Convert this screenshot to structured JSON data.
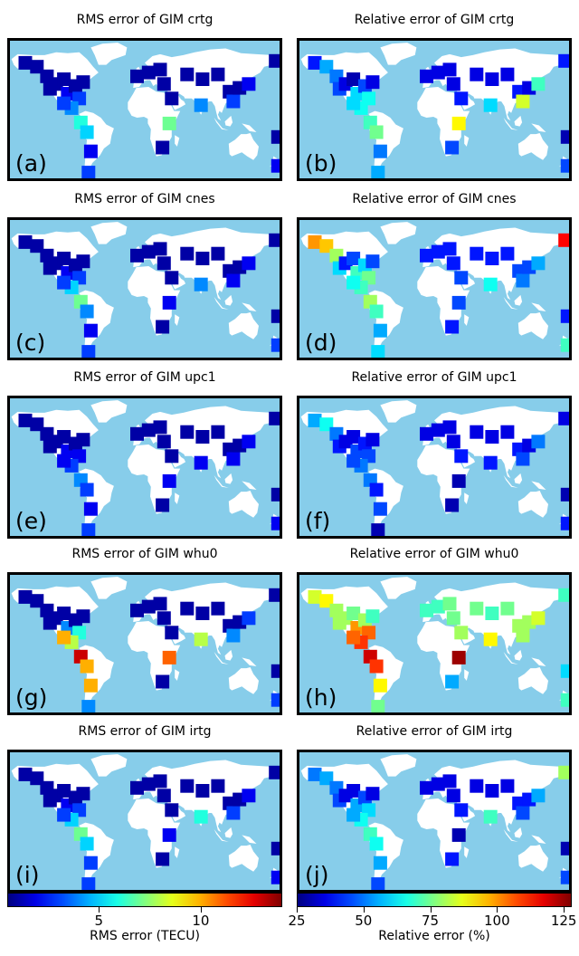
{
  "panels": [
    {
      "title": "RMS error of GIM crtg",
      "label": "(a)",
      "colormap": "rms"
    },
    {
      "title": "Relative error of GIM crtg",
      "label": "(b)",
      "colormap": "rel"
    },
    {
      "title": "RMS error of GIM cnes",
      "label": "(c)",
      "colormap": "rms"
    },
    {
      "title": "Relative error of GIM cnes",
      "label": "(d)",
      "colormap": "rel"
    },
    {
      "title": "RMS error of GIM upc1",
      "label": "(e)",
      "colormap": "rms"
    },
    {
      "title": "Relative error of GIM upc1",
      "label": "(f)",
      "colormap": "rel"
    },
    {
      "title": "RMS error of GIM whu0",
      "label": "(g)",
      "colormap": "rms"
    },
    {
      "title": "Relative error of GIM whu0",
      "label": "(h)",
      "colormap": "rel"
    },
    {
      "title": "RMS error of GIM irtg",
      "label": "(i)",
      "colormap": "rms"
    },
    {
      "title": "Relative error of GIM irtg",
      "label": "(j)",
      "colormap": "rel"
    }
  ],
  "colorbars": [
    {
      "label": "RMS error (TECU)",
      "ticks": [
        "5",
        "10"
      ],
      "tick_values": [
        5,
        10
      ],
      "range": [
        0.5,
        14
      ]
    },
    {
      "label": "Relative error (%)",
      "ticks": [
        "25",
        "50",
        "75",
        "100",
        "125"
      ],
      "tick_values": [
        25,
        50,
        75,
        100,
        125
      ],
      "range": [
        25,
        128
      ]
    }
  ],
  "colors": {
    "ocean": "#87cdea",
    "land": "#ffffff",
    "frame": "#000000"
  },
  "chart_data": {
    "type": "heatmap",
    "description_of_values": "approximate per-station error levels read from the jet colormap, station locations in degrees (lon, lat)",
    "stations": [
      {
        "lon": -150,
        "lat": 62
      },
      {
        "lon": -135,
        "lat": 58
      },
      {
        "lon": -122,
        "lat": 48
      },
      {
        "lon": -118,
        "lat": 35
      },
      {
        "lon": -110,
        "lat": 40
      },
      {
        "lon": -100,
        "lat": 45
      },
      {
        "lon": -95,
        "lat": 30
      },
      {
        "lon": -85,
        "lat": 38
      },
      {
        "lon": -75,
        "lat": 42
      },
      {
        "lon": -80,
        "lat": 25
      },
      {
        "lon": -90,
        "lat": 15
      },
      {
        "lon": -100,
        "lat": 20
      },
      {
        "lon": -78,
        "lat": 0
      },
      {
        "lon": -70,
        "lat": -10
      },
      {
        "lon": -65,
        "lat": -30
      },
      {
        "lon": -68,
        "lat": -52
      },
      {
        "lon": -5,
        "lat": 48
      },
      {
        "lon": 10,
        "lat": 52
      },
      {
        "lon": 25,
        "lat": 55
      },
      {
        "lon": 30,
        "lat": 40
      },
      {
        "lon": 40,
        "lat": 25
      },
      {
        "lon": 37,
        "lat": -1
      },
      {
        "lon": 28,
        "lat": -26
      },
      {
        "lon": 60,
        "lat": 50
      },
      {
        "lon": 80,
        "lat": 45
      },
      {
        "lon": 100,
        "lat": 50
      },
      {
        "lon": 78,
        "lat": 18
      },
      {
        "lon": 115,
        "lat": 32
      },
      {
        "lon": 120,
        "lat": 22
      },
      {
        "lon": 128,
        "lat": 36
      },
      {
        "lon": 140,
        "lat": 40
      },
      {
        "lon": 175,
        "lat": 64
      },
      {
        "lon": 178,
        "lat": -15
      },
      {
        "lon": 178,
        "lat": -45
      }
    ],
    "series": [
      {
        "panel": "(a)",
        "values": [
          1,
          1,
          1,
          1,
          1,
          1,
          2,
          1,
          1,
          3,
          4,
          3,
          6,
          5,
          2,
          3,
          1,
          1,
          1,
          1,
          1,
          7,
          1,
          1,
          1,
          1,
          4,
          1,
          3,
          1,
          2,
          1,
          1,
          2
        ]
      },
      {
        "panel": "(b)",
        "values": [
          40,
          55,
          50,
          45,
          35,
          30,
          60,
          45,
          35,
          65,
          65,
          60,
          70,
          75,
          50,
          55,
          35,
          35,
          35,
          35,
          40,
          90,
          45,
          35,
          35,
          35,
          60,
          40,
          85,
          35,
          70,
          40,
          30,
          45
        ]
      },
      {
        "panel": "(c)",
        "values": [
          1,
          1,
          1,
          1,
          1,
          1,
          2,
          1,
          1,
          3,
          5,
          3,
          7,
          4,
          2,
          3,
          1,
          1,
          1,
          1,
          1,
          2,
          1,
          1,
          1,
          1,
          4,
          1,
          2,
          1,
          2,
          1,
          1,
          3
        ]
      },
      {
        "panel": "(d)",
        "values": [
          100,
          95,
          80,
          60,
          40,
          45,
          70,
          60,
          45,
          75,
          70,
          65,
          80,
          70,
          55,
          60,
          40,
          40,
          40,
          40,
          45,
          45,
          40,
          40,
          40,
          40,
          65,
          45,
          50,
          45,
          55,
          115,
          40,
          70
        ]
      },
      {
        "panel": "(e)",
        "values": [
          1,
          1,
          1,
          1,
          1,
          1,
          2,
          1,
          1,
          2,
          3,
          2,
          4,
          3,
          2,
          3,
          1,
          1,
          1,
          1,
          1,
          2,
          1,
          1,
          1,
          1,
          2,
          1,
          2,
          1,
          2,
          1,
          1,
          2
        ]
      },
      {
        "panel": "(f)",
        "values": [
          55,
          65,
          50,
          40,
          35,
          35,
          45,
          40,
          35,
          45,
          50,
          45,
          50,
          40,
          45,
          30,
          35,
          35,
          35,
          35,
          40,
          30,
          30,
          35,
          35,
          35,
          40,
          40,
          45,
          35,
          50,
          35,
          30,
          40
        ]
      },
      {
        "panel": "(g)",
        "values": [
          1,
          1,
          1,
          1,
          1,
          1,
          4,
          1,
          1,
          6,
          8,
          10,
          13,
          10,
          10,
          4,
          1,
          1,
          1,
          1,
          1,
          11,
          1,
          1,
          1,
          1,
          8,
          1,
          4,
          1,
          3,
          1,
          1,
          3
        ]
      },
      {
        "panel": "(h)",
        "values": [
          85,
          90,
          80,
          80,
          80,
          75,
          100,
          80,
          70,
          105,
          110,
          105,
          120,
          110,
          90,
          75,
          70,
          70,
          75,
          75,
          80,
          125,
          55,
          75,
          70,
          75,
          90,
          80,
          80,
          80,
          85,
          70,
          60,
          70
        ]
      },
      {
        "panel": "(i)",
        "values": [
          1,
          1,
          1,
          1,
          1,
          1,
          2,
          1,
          1,
          3,
          5,
          3,
          7,
          5,
          3,
          3,
          1,
          1,
          1,
          1,
          1,
          2,
          1,
          1,
          1,
          1,
          6,
          1,
          3,
          1,
          2,
          1,
          1,
          2
        ]
      },
      {
        "panel": "(j)",
        "values": [
          50,
          55,
          50,
          45,
          35,
          35,
          55,
          45,
          35,
          60,
          65,
          55,
          70,
          65,
          55,
          45,
          35,
          35,
          35,
          35,
          40,
          30,
          40,
          35,
          35,
          35,
          70,
          40,
          45,
          40,
          55,
          80,
          30,
          45
        ]
      }
    ]
  }
}
